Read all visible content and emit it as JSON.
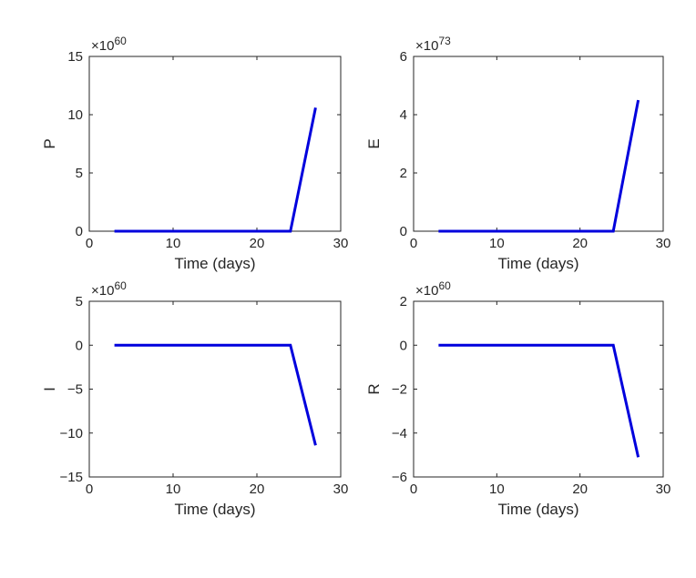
{
  "chart_data": [
    {
      "type": "line",
      "xlabel": "Time (days)",
      "ylabel": "P",
      "exponent": "60",
      "xlim": [
        0,
        30
      ],
      "ylim": [
        0,
        15
      ],
      "xticks": [
        0,
        10,
        20,
        30
      ],
      "yticks": [
        0,
        5,
        10,
        15
      ],
      "series": [
        {
          "color": "#0000dd",
          "x": [
            3,
            24,
            27
          ],
          "y": [
            0,
            0,
            10.6
          ]
        }
      ]
    },
    {
      "type": "line",
      "xlabel": "Time (days)",
      "ylabel": "E",
      "exponent": "73",
      "xlim": [
        0,
        30
      ],
      "ylim": [
        0,
        6
      ],
      "xticks": [
        0,
        10,
        20,
        30
      ],
      "yticks": [
        0,
        2,
        4,
        6
      ],
      "series": [
        {
          "color": "#0000dd",
          "x": [
            3,
            24,
            27
          ],
          "y": [
            0,
            0,
            4.5
          ]
        }
      ]
    },
    {
      "type": "line",
      "xlabel": "Time (days)",
      "ylabel": "I",
      "exponent": "60",
      "xlim": [
        0,
        30
      ],
      "ylim": [
        -15,
        5
      ],
      "xticks": [
        0,
        10,
        20,
        30
      ],
      "yticks": [
        -15,
        -10,
        -5,
        0,
        5
      ],
      "series": [
        {
          "color": "#0000dd",
          "x": [
            3,
            24,
            27
          ],
          "y": [
            0,
            0,
            -11.4
          ]
        }
      ]
    },
    {
      "type": "line",
      "xlabel": "Time (days)",
      "ylabel": "R",
      "exponent": "60",
      "xlim": [
        0,
        30
      ],
      "ylim": [
        -6,
        2
      ],
      "xticks": [
        0,
        10,
        20,
        30
      ],
      "yticks": [
        -6,
        -4,
        -2,
        0,
        2
      ],
      "series": [
        {
          "color": "#0000dd",
          "x": [
            3,
            24,
            27
          ],
          "y": [
            0,
            0,
            -5.1
          ]
        }
      ]
    }
  ]
}
